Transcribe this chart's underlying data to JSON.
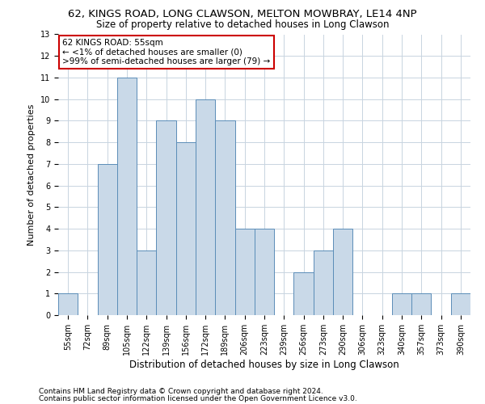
{
  "title": "62, KINGS ROAD, LONG CLAWSON, MELTON MOWBRAY, LE14 4NP",
  "subtitle": "Size of property relative to detached houses in Long Clawson",
  "xlabel": "Distribution of detached houses by size in Long Clawson",
  "ylabel": "Number of detached properties",
  "categories": [
    "55sqm",
    "72sqm",
    "89sqm",
    "105sqm",
    "122sqm",
    "139sqm",
    "156sqm",
    "172sqm",
    "189sqm",
    "206sqm",
    "223sqm",
    "239sqm",
    "256sqm",
    "273sqm",
    "290sqm",
    "306sqm",
    "323sqm",
    "340sqm",
    "357sqm",
    "373sqm",
    "390sqm"
  ],
  "values": [
    1,
    0,
    7,
    11,
    3,
    9,
    8,
    10,
    9,
    4,
    4,
    0,
    2,
    3,
    4,
    0,
    0,
    1,
    1,
    0,
    1
  ],
  "bar_color": "#c9d9e8",
  "bar_edge_color": "#5b8db8",
  "annotation_title": "62 KINGS ROAD: 55sqm",
  "annotation_line1": "← <1% of detached houses are smaller (0)",
  "annotation_line2": ">99% of semi-detached houses are larger (79) →",
  "annotation_box_color": "#ffffff",
  "annotation_edge_color": "#cc0000",
  "ylim": [
    0,
    13
  ],
  "yticks": [
    0,
    1,
    2,
    3,
    4,
    5,
    6,
    7,
    8,
    9,
    10,
    11,
    12,
    13
  ],
  "footnote1": "Contains HM Land Registry data © Crown copyright and database right 2024.",
  "footnote2": "Contains public sector information licensed under the Open Government Licence v3.0.",
  "bg_color": "#ffffff",
  "grid_color": "#c8d4e0",
  "title_fontsize": 9.5,
  "subtitle_fontsize": 8.5,
  "xlabel_fontsize": 8.5,
  "ylabel_fontsize": 8.0,
  "tick_fontsize": 7.0,
  "annotation_fontsize": 7.5,
  "footnote_fontsize": 6.5
}
